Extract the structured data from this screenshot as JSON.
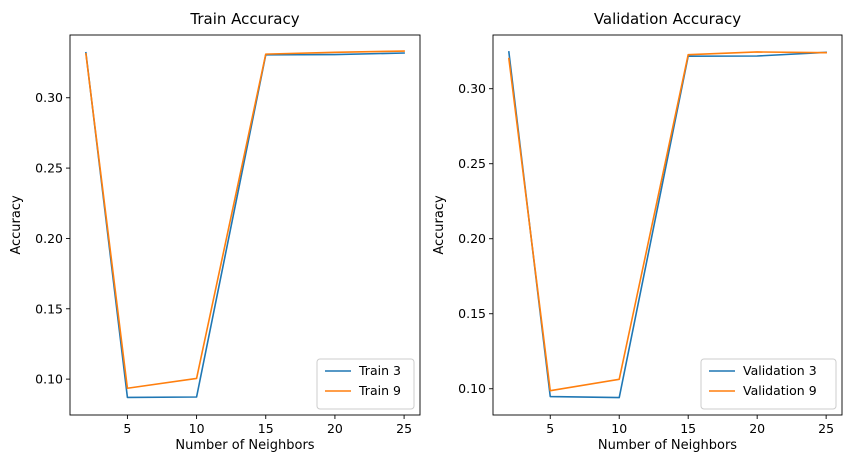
{
  "chart_data": [
    {
      "type": "line",
      "title": "Train Accuracy",
      "xlabel": "Number of Neighbors",
      "ylabel": "Accuracy",
      "x": [
        2,
        5,
        10,
        15,
        20,
        25
      ],
      "xticks": [
        5,
        10,
        15,
        20,
        25
      ],
      "yticks": [
        0.1,
        0.15,
        0.2,
        0.25,
        0.3
      ],
      "xlim": [
        0.85,
        26.15
      ],
      "ylim": [
        0.0745,
        0.3446
      ],
      "grid": false,
      "legend_position": "bottom-right",
      "series": [
        {
          "name": "Train 3",
          "color": "#1f77b4",
          "values": [
            0.332,
            0.087,
            0.0873,
            0.3305,
            0.3307,
            0.3318
          ]
        },
        {
          "name": "Train 9",
          "color": "#ff7f0e",
          "values": [
            0.3312,
            0.0935,
            0.1005,
            0.331,
            0.3323,
            0.3332
          ]
        }
      ]
    },
    {
      "type": "line",
      "title": "Validation Accuracy",
      "xlabel": "Number of Neighbors",
      "ylabel": "Accuracy",
      "x": [
        2,
        5,
        10,
        15,
        20,
        25
      ],
      "xticks": [
        5,
        10,
        15,
        20,
        25
      ],
      "yticks": [
        0.1,
        0.15,
        0.2,
        0.25,
        0.3
      ],
      "xlim": [
        0.85,
        26.15
      ],
      "ylim": [
        0.0825,
        0.3358
      ],
      "grid": false,
      "legend_position": "bottom-right",
      "series": [
        {
          "name": "Validation 3",
          "color": "#1f77b4",
          "values": [
            0.3245,
            0.0948,
            0.0941,
            0.3217,
            0.3218,
            0.3242
          ]
        },
        {
          "name": "Validation 9",
          "color": "#ff7f0e",
          "values": [
            0.3201,
            0.0987,
            0.1063,
            0.3227,
            0.3245,
            0.324
          ]
        }
      ]
    }
  ]
}
